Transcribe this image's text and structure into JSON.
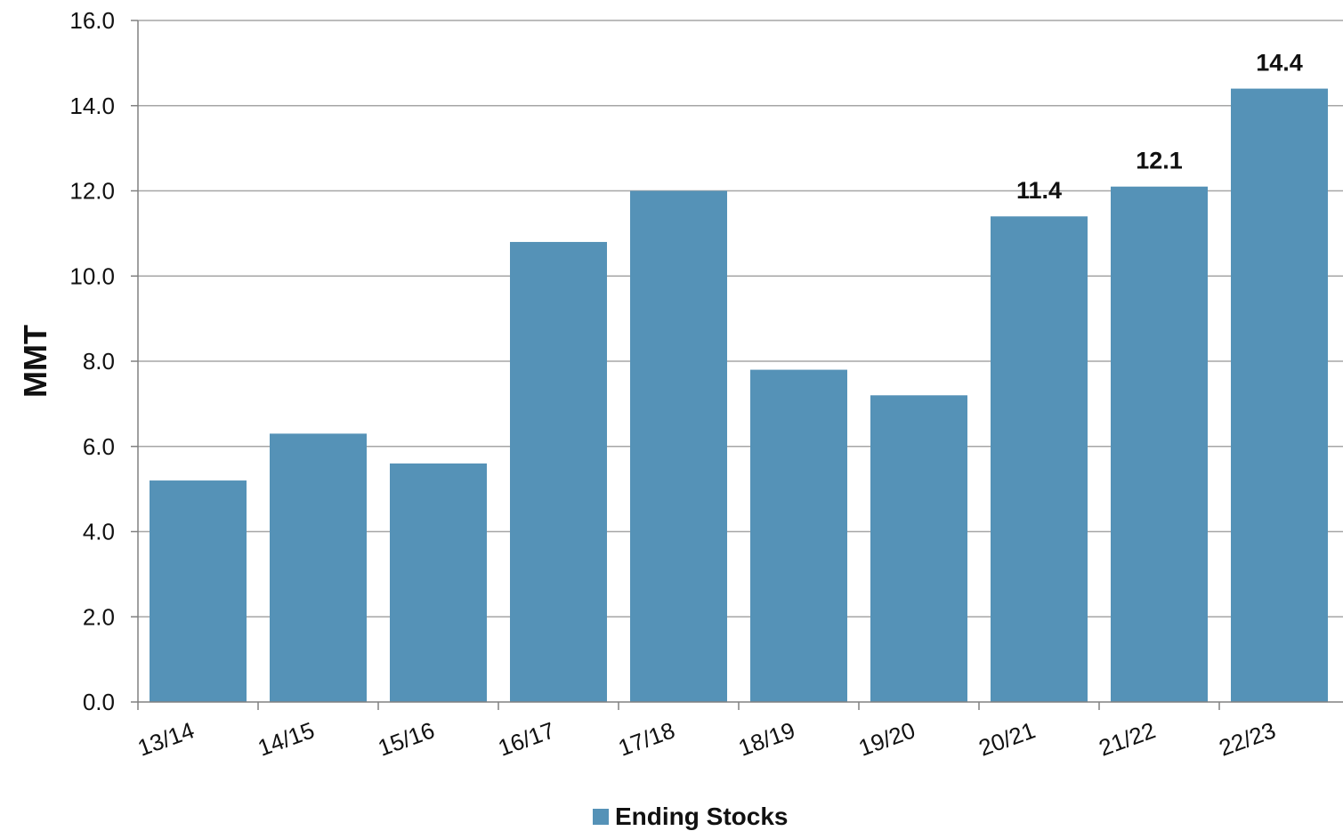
{
  "chart_data": {
    "type": "bar",
    "categories": [
      "13/14",
      "14/15",
      "15/16",
      "16/17",
      "17/18",
      "18/19",
      "19/20",
      "20/21",
      "21/22",
      "22/23"
    ],
    "series": [
      {
        "name": "Ending Stocks",
        "values": [
          5.2,
          6.3,
          5.6,
          10.8,
          12.0,
          7.8,
          7.2,
          11.4,
          12.1,
          14.4
        ],
        "color": "#5592b7"
      }
    ],
    "data_labels": [
      "",
      "",
      "",
      "",
      "",
      "",
      "",
      "11.4",
      "12.1",
      "14.4"
    ],
    "ylabel": "MMT",
    "xlabel": "",
    "ylim": [
      0,
      16
    ],
    "yticks": [
      "0.0",
      "2.0",
      "4.0",
      "6.0",
      "8.0",
      "10.0",
      "12.0",
      "14.0",
      "16.0"
    ],
    "grid": true,
    "legend_position": "bottom-center",
    "colors": {
      "bar": "#5592b7",
      "grid": "#a6a6a6",
      "axis": "#808080",
      "text": "#111111"
    }
  }
}
